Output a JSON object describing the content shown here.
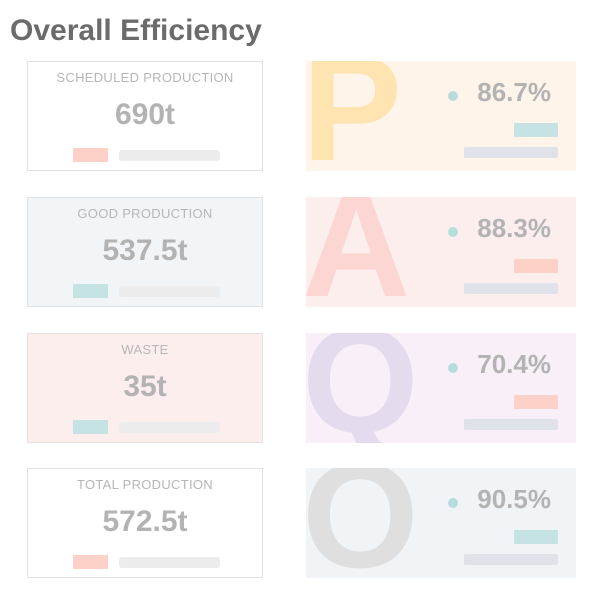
{
  "header": {
    "title": "Overall Efficiency"
  },
  "cards": [
    {
      "label": "SCHEDULED PRODUCTION",
      "value": "690t"
    },
    {
      "label": "GOOD PRODUCTION",
      "value": "537.5t"
    },
    {
      "label": "WASTE",
      "value": "35t"
    },
    {
      "label": "TOTAL PRODUCTION",
      "value": "572.5t"
    }
  ],
  "metrics": [
    {
      "letter": "P",
      "value": "86.7%"
    },
    {
      "letter": "A",
      "value": "88.3%"
    },
    {
      "letter": "Q",
      "value": "70.4%"
    },
    {
      "letter": "O",
      "value": "90.5%"
    }
  ]
}
